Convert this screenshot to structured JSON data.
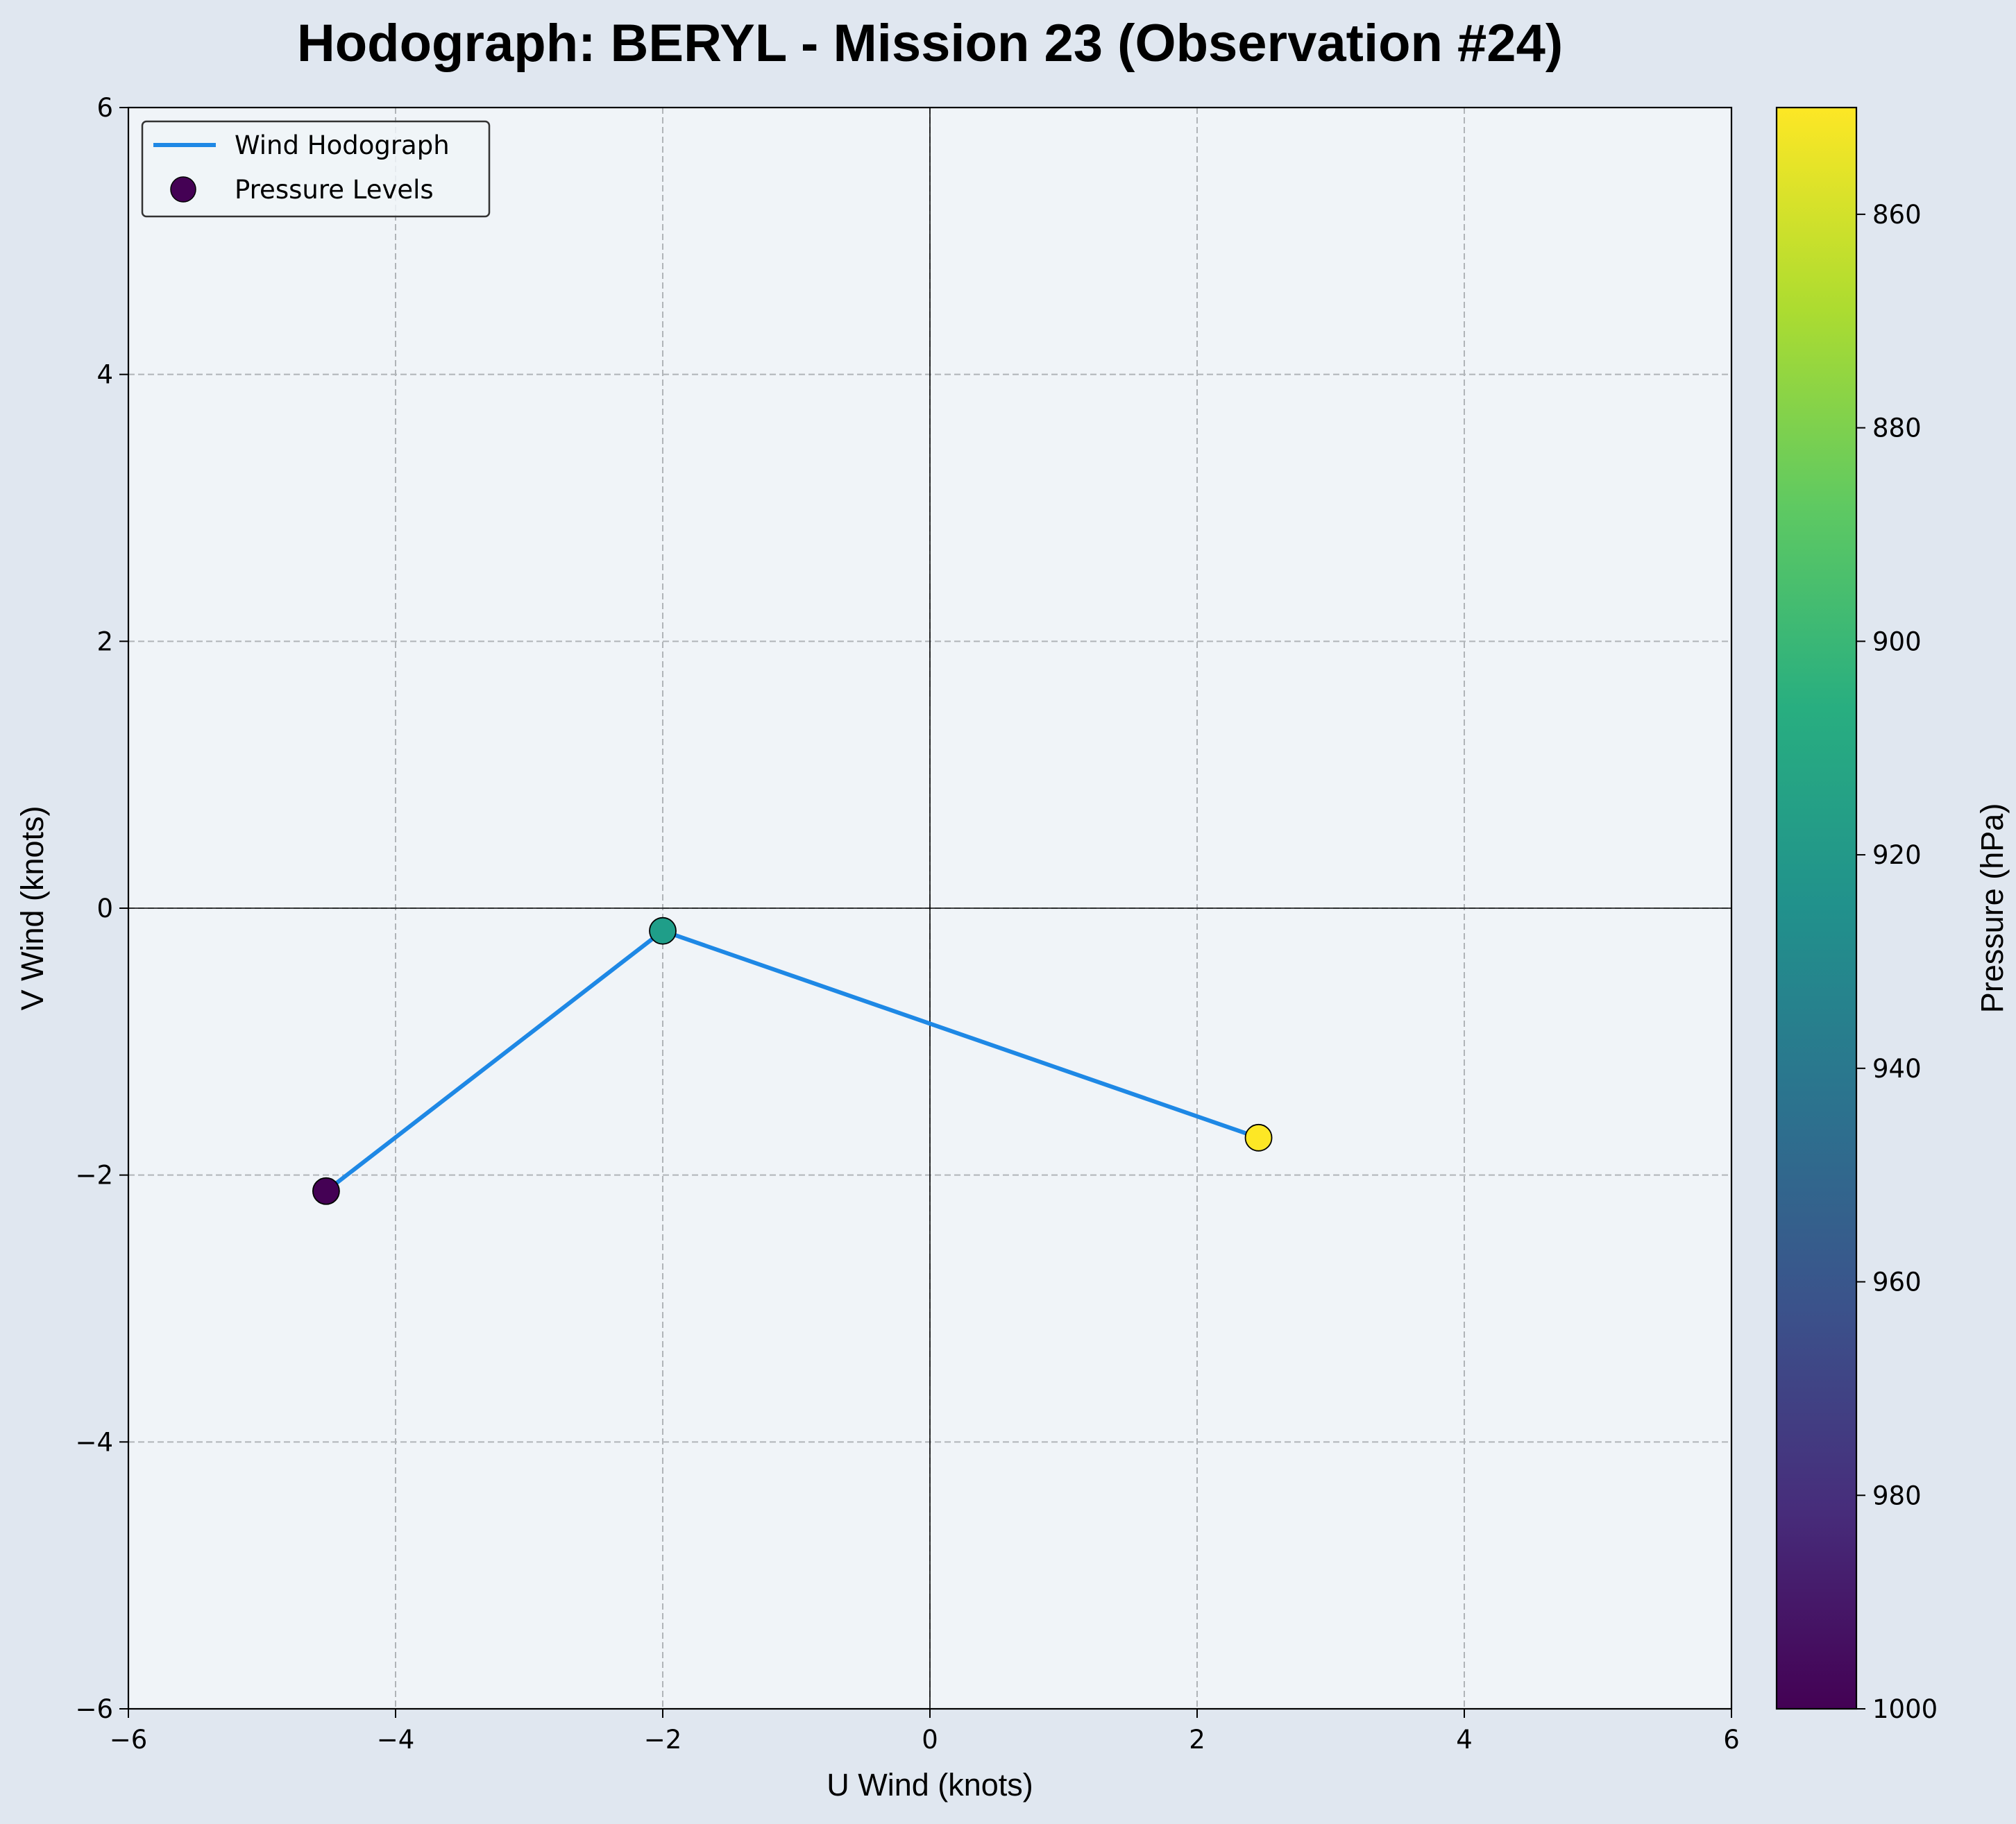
{
  "chart_data": {
    "type": "line",
    "title": "Hodograph: BERYL - Mission 23 (Observation #24)",
    "xlabel": "U Wind (knots)",
    "ylabel": "V Wind (knots)",
    "xlim": [
      -6,
      6
    ],
    "ylim": [
      -6,
      6
    ],
    "x_ticks": [
      -6,
      -4,
      -2,
      0,
      2,
      4,
      6
    ],
    "y_ticks": [
      -6,
      -4,
      -2,
      0,
      2,
      4,
      6
    ],
    "grid": true,
    "legend_position": "top-left",
    "series": [
      {
        "name": "Wind Hodograph",
        "kind": "line",
        "color": "#1e88e5",
        "points": [
          {
            "u": -4.52,
            "v": -2.12
          },
          {
            "u": -2.0,
            "v": -0.17
          },
          {
            "u": 2.46,
            "v": -1.72
          }
        ]
      },
      {
        "name": "Pressure Levels",
        "kind": "scatter",
        "points": [
          {
            "u": -4.52,
            "v": -2.12,
            "pressure": 1000,
            "color": "#440154"
          },
          {
            "u": -2.0,
            "v": -0.17,
            "pressure": 925,
            "color": "#1f9e89"
          },
          {
            "u": 2.46,
            "v": -1.72,
            "pressure": 850,
            "color": "#fde725"
          }
        ]
      }
    ],
    "colorbar": {
      "label": "Pressure (hPa)",
      "colormap": "viridis",
      "range": [
        850,
        1000
      ],
      "reversed": true,
      "ticks": [
        860,
        880,
        900,
        920,
        940,
        960,
        980,
        1000
      ]
    },
    "colors": {
      "figure_background": "#e0e7f0",
      "plot_background": "#f0f4f8",
      "line": "#1e88e5",
      "grid": "#b0b4b8"
    }
  }
}
